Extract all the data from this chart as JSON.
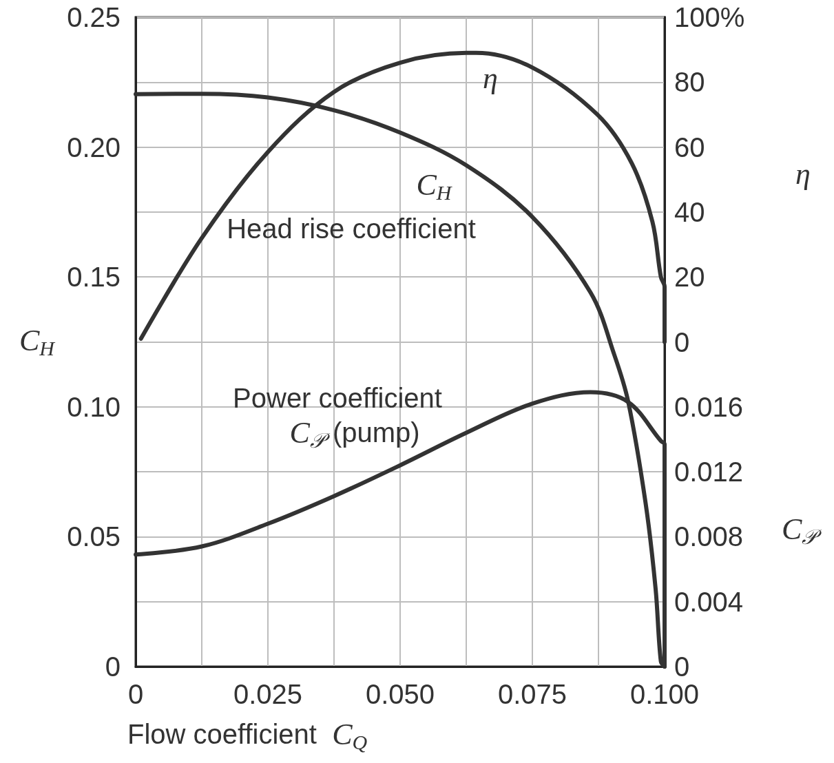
{
  "chart_data": {
    "type": "line",
    "xlabel": "Flow coefficient  C$_{Q}$",
    "ylabel": "C$_{H}$",
    "y2label": "η",
    "y3label": "C$_{𝒫}$",
    "xlim": [
      0,
      0.1
    ],
    "xticks": [
      0,
      {
        "value": 0.0125,
        "label": null
      },
      0.025,
      {
        "value": 0.0375,
        "label": null
      },
      {
        "value": 0.05,
        "label": "0.050"
      },
      {
        "value": 0.0625,
        "label": null
      },
      0.075,
      {
        "value": 0.0875,
        "label": null
      },
      {
        "value": 0.1,
        "label": "0.100"
      }
    ],
    "ylim": [
      0,
      0.25
    ],
    "yticks": [
      0,
      {
        "value": 0.025,
        "label": null
      },
      0.05,
      {
        "value": 0.075,
        "label": null
      },
      {
        "value": 0.1,
        "label": "0.10"
      },
      {
        "value": 0.125,
        "label": null
      },
      0.15,
      {
        "value": 0.175,
        "label": null
      },
      {
        "value": 0.2,
        "label": "0.20"
      },
      {
        "value": 0.225,
        "label": null
      },
      0.25
    ],
    "y2lim": [
      -100,
      100
    ],
    "y2ticks": [
      0,
      20,
      40,
      60,
      80,
      {
        "value": 100,
        "label": "100%"
      }
    ],
    "y3lim": [
      0,
      0.04
    ],
    "y3ticks": [
      0,
      0.004,
      0.008,
      0.012,
      0.016
    ],
    "grid": true,
    "legend": false,
    "marker": "none",
    "line_style": "solid",
    "series": [
      {
        "name": "C$_{H}$",
        "color": "#333333",
        "x": [
          0,
          0.0125,
          0.025,
          0.0375,
          0.05,
          0.0625,
          0.075,
          0.086,
          0.0905,
          0.0931,
          0.0964,
          0.0983,
          0.0993,
          0.1
        ],
        "values": [
          0.2204,
          0.2205,
          0.2191,
          0.2142,
          0.2056,
          0.193,
          0.1731,
          0.144,
          0.12,
          0.1022,
          0.0631,
          0.03,
          0.002,
          0
        ]
      },
      {
        "name": "η",
        "color": "#333333",
        "axis": "y2",
        "x": [
          0.001,
          0.0125,
          0.025,
          0.0375,
          0.05,
          0.0625,
          0.0644,
          0.075,
          0.0873,
          0.0938,
          0.0977,
          0.0993,
          0.1,
          0.1
        ],
        "values": [
          1,
          32,
          58.5,
          77,
          86,
          89,
          89,
          84.5,
          70,
          55,
          37,
          20,
          17,
          0
        ]
      },
      {
        "name": "C$_{𝒫}$ (pump)",
        "color": "#333333",
        "axis": "y3",
        "x": [
          0,
          0.0125,
          0.025,
          0.0375,
          0.05,
          0.0625,
          0.075,
          0.086,
          0.0931,
          0.0993,
          0.1,
          0.1
        ],
        "values": [
          0.0069,
          0.0074,
          0.0088,
          0.0105,
          0.0124,
          0.0144,
          0.0162,
          0.0169,
          0.0163,
          0.0139,
          0.0137,
          0
        ]
      }
    ],
    "annotations": [
      "Head rise coefficient",
      "Power coefficient"
    ]
  }
}
